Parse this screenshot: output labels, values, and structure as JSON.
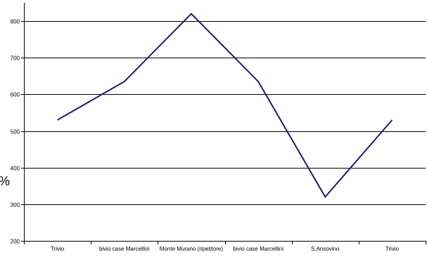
{
  "chart_data": {
    "type": "line",
    "title": "",
    "xlabel": "",
    "ylabel": "",
    "categories": [
      "Trivio",
      "bivio case Marcellini",
      "Monte Murano (ripetitore)",
      "bivio case Marcellini",
      "S.Ansovino",
      "Trivio"
    ],
    "series": [
      {
        "values": [
          530,
          635,
          820,
          635,
          320,
          530
        ]
      }
    ],
    "ylim": [
      200,
      850
    ],
    "yticks": [
      200,
      300,
      400,
      500,
      600,
      700,
      800
    ],
    "grid": true,
    "legend": "none",
    "line_color": "#1a1a6e",
    "grid_color": "#000000"
  },
  "edge_glyph": "%"
}
